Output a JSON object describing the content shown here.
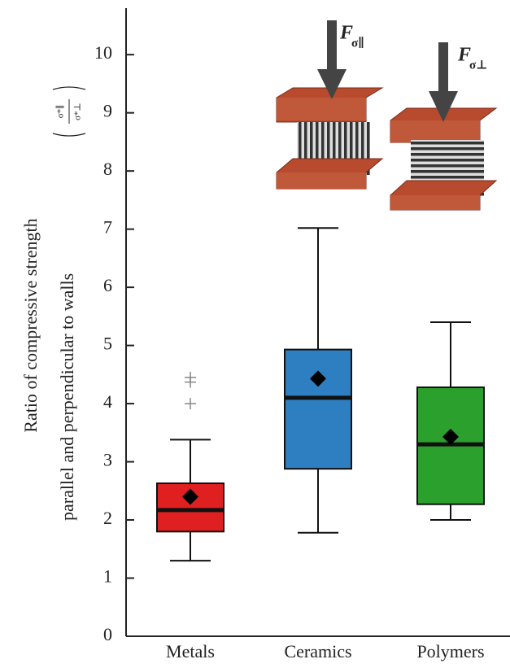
{
  "chart_data": {
    "type": "box",
    "ylabel": [
      "Ratio of compressive strength",
      "parallel and perpendicular to walls"
    ],
    "ylabel_fraction": {
      "numerator": "σ*∥",
      "denominator": "σ*⊥"
    },
    "annotations": [
      {
        "symbol": "F",
        "subscript": "σ∥"
      },
      {
        "symbol": "F",
        "subscript": "σ⊥"
      }
    ],
    "categories": [
      "Metals",
      "Ceramics",
      "Polymers"
    ],
    "boxes": [
      {
        "color": "#e02020",
        "min": 1.3,
        "q1": 1.8,
        "median": 2.17,
        "q3": 2.63,
        "max": 3.38,
        "mean": 2.4,
        "outliers": [
          4.0,
          4.37,
          4.45
        ]
      },
      {
        "color": "#2e7fc2",
        "min": 1.78,
        "q1": 2.88,
        "median": 4.1,
        "q3": 4.93,
        "max": 7.02,
        "mean": 4.43,
        "outliers": []
      },
      {
        "color": "#2ca02c",
        "min": 2.0,
        "q1": 2.27,
        "median": 3.3,
        "q3": 4.28,
        "max": 5.4,
        "mean": 3.43,
        "outliers": []
      }
    ],
    "ylim": [
      0,
      10.8
    ],
    "yticks": [
      0,
      1,
      2,
      3,
      4,
      5,
      6,
      7,
      8,
      9,
      10
    ]
  }
}
